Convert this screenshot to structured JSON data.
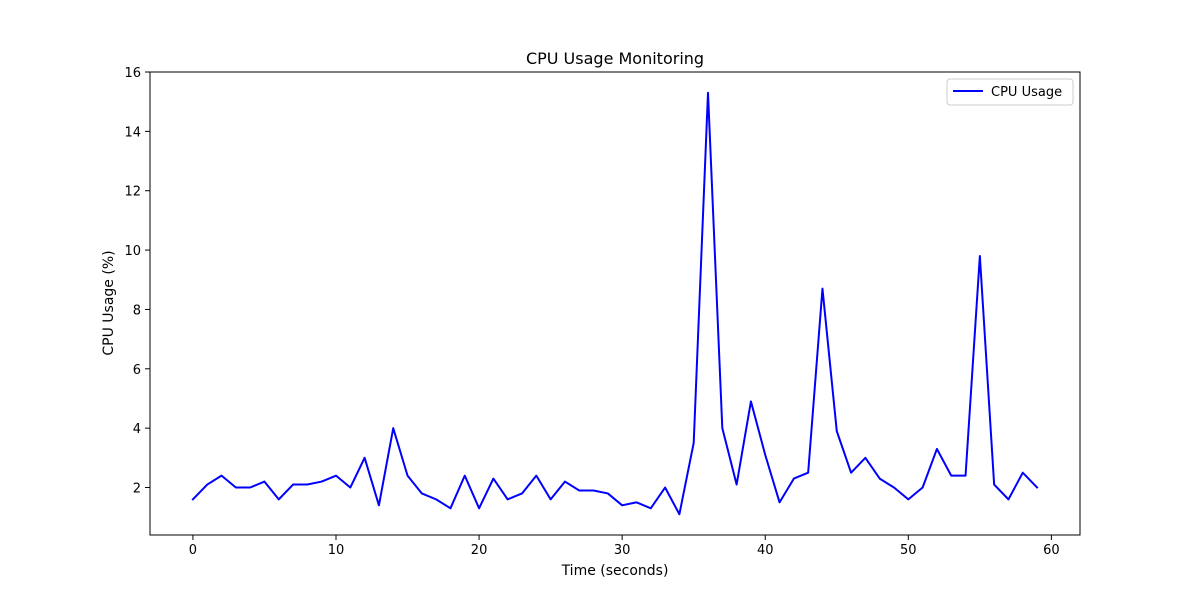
{
  "chart_data": {
    "type": "line",
    "title": "CPU Usage Monitoring",
    "xlabel": "Time (seconds)",
    "ylabel": "CPU Usage (%)",
    "xlim": [
      -3,
      62
    ],
    "ylim": [
      0.4,
      16
    ],
    "xticks": [
      0,
      10,
      20,
      30,
      40,
      50,
      60
    ],
    "yticks": [
      2,
      4,
      6,
      8,
      10,
      12,
      14,
      16
    ],
    "grid": false,
    "legend": "top-right",
    "series": [
      {
        "name": "CPU Usage",
        "color": "#0000ff",
        "x": [
          0,
          1,
          2,
          3,
          4,
          5,
          6,
          7,
          8,
          9,
          10,
          11,
          12,
          13,
          14,
          15,
          16,
          17,
          18,
          19,
          20,
          21,
          22,
          23,
          24,
          25,
          26,
          27,
          28,
          29,
          30,
          31,
          32,
          33,
          34,
          35,
          36,
          37,
          38,
          39,
          40,
          41,
          42,
          43,
          44,
          45,
          46,
          47,
          48,
          49,
          50,
          51,
          52,
          53,
          54,
          55,
          56,
          57,
          58,
          59
        ],
        "values": [
          1.6,
          2.1,
          2.4,
          2.0,
          2.0,
          2.2,
          1.6,
          2.1,
          2.1,
          2.2,
          2.4,
          2.0,
          3.0,
          1.4,
          4.0,
          2.4,
          1.8,
          1.6,
          1.3,
          2.4,
          1.3,
          2.3,
          1.6,
          1.8,
          2.4,
          1.6,
          2.2,
          1.9,
          1.9,
          1.8,
          1.4,
          1.5,
          1.3,
          2.0,
          1.1,
          3.5,
          15.3,
          4.0,
          2.1,
          4.9,
          3.1,
          1.5,
          2.3,
          2.5,
          8.7,
          3.9,
          2.5,
          3.0,
          2.3,
          2.0,
          1.6,
          2.0,
          3.3,
          2.4,
          2.4,
          9.8,
          2.1,
          1.6,
          2.5,
          2.0
        ]
      }
    ]
  }
}
